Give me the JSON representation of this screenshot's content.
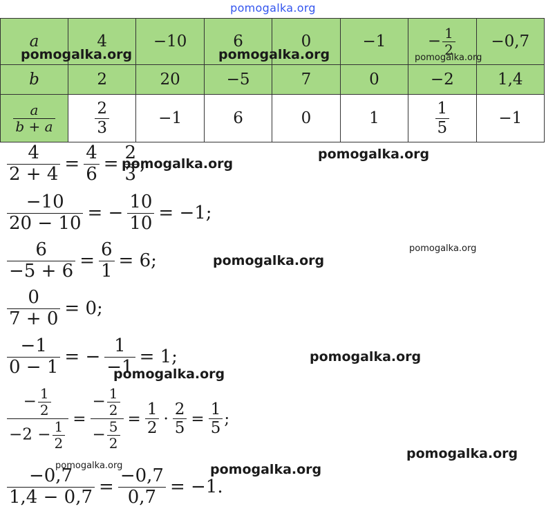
{
  "top_watermark": "pomogalka.org",
  "watermark": "pomogalka.org",
  "table": {
    "row_a": {
      "header": "a",
      "cells": [
        "4",
        "−10",
        "6",
        "0",
        "−1",
        "-1/2",
        "−0,7"
      ]
    },
    "row_b": {
      "header": "b",
      "cells": [
        "2",
        "20",
        "−5",
        "7",
        "0",
        "−2",
        "1,4"
      ]
    },
    "row_q": {
      "header_num": "a",
      "header_den": "b + a",
      "cells": [
        {
          "type": "frac",
          "num": "2",
          "den": "3"
        },
        {
          "type": "text",
          "text": "−1"
        },
        {
          "type": "text",
          "text": "6"
        },
        {
          "type": "text",
          "text": "0"
        },
        {
          "type": "text",
          "text": "1"
        },
        {
          "type": "frac",
          "num": "1",
          "den": "5"
        },
        {
          "type": "text",
          "text": "−1"
        }
      ]
    },
    "neg_half": {
      "sign": "−",
      "num": "1",
      "den": "2"
    }
  },
  "calc": {
    "l1": {
      "n1": "4",
      "d1": "2 + 4",
      "eq1": "=",
      "n2": "4",
      "d2": "6",
      "eq2": "=",
      "n3": "2",
      "d3": "3",
      "end": ";"
    },
    "l2": {
      "n1": "−10",
      "d1": "20 − 10",
      "eq1": "= −",
      "n2": "10",
      "d2": "10",
      "res": "= −1;"
    },
    "l3": {
      "n1": "6",
      "d1": "−5 + 6",
      "eq1": "=",
      "n2": "6",
      "d2": "1",
      "res": "= 6;"
    },
    "l4": {
      "n1": "0",
      "d1": "7 + 0",
      "res": "= 0;"
    },
    "l5": {
      "n1": "−1",
      "d1": "0 − 1",
      "eq1": "= −",
      "n2": "1",
      "d2": "−1",
      "res": "= 1;"
    },
    "l6": {
      "sign": "−",
      "hn": "1",
      "hd": "2",
      "den_pre": "−2 −",
      "dn": "1",
      "dd": "2",
      "eq1": "=",
      "sign2": "−",
      "hn2": "1",
      "hd2": "2",
      "den2_sign": "−",
      "dn2": "5",
      "dd2": "2",
      "eq2": "=",
      "a1n": "1",
      "a1d": "2",
      "dot": "·",
      "a2n": "2",
      "a2d": "5",
      "eq3": "=",
      "rn": "1",
      "rd": "5",
      "end": ";"
    },
    "l7": {
      "n1": "−0,7",
      "d1": "1,4 − 0,7",
      "eq1": "=",
      "n2": "−0,7",
      "d2": "0,7",
      "res": "= −1."
    }
  }
}
